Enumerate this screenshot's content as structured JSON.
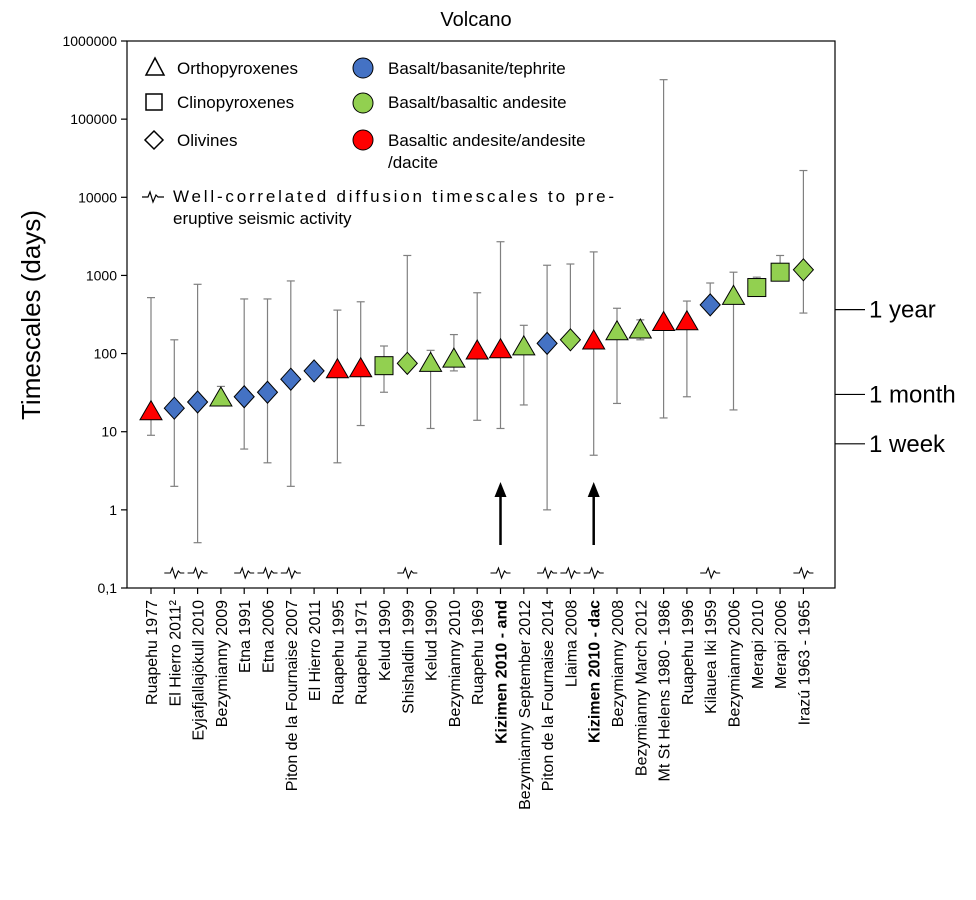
{
  "chart_data": {
    "type": "scatter",
    "title": "Volcano",
    "xlabel": "",
    "ylabel": "Timescales (days)",
    "y_scale": "log",
    "ylim": [
      0.1,
      1000000
    ],
    "y_ticks": [
      "0,1",
      "1",
      "10",
      "100",
      "1000",
      "10000",
      "100000",
      "1000000"
    ],
    "grid": false,
    "categories": [
      "Ruapehu 1977",
      "El Hierro 2011²",
      "Eyjafjallajökull 2010",
      "Bezymianny 2009",
      "Etna 1991",
      "Etna 2006",
      "Piton de la Fournaise 2007",
      "El Hierro 2011",
      "Ruapehu 1995",
      "Ruapehu 1971",
      "Kelud 1990",
      "Shishaldin 1999",
      "Kelud 1990",
      "Bezymianny 2010",
      "Ruapehu 1969",
      "Kizimen 2010 - and",
      "Bezymianny September 2012",
      "Piton de la Fournaise 2014",
      "Llaima 2008",
      "Kizimen 2010 - dac",
      "Bezymianny 2008",
      "Bezymianny March 2012",
      "Mt St Helens 1980 - 1986",
      "Ruapehu 1996",
      "Kilauea  Iki 1959",
      "Bezymianny 2006",
      "Merapi 2010",
      "Merapi 2006",
      "Irazú 1963 - 1965"
    ],
    "bold_categories": [
      15,
      19
    ],
    "points": [
      {
        "value": 18,
        "low": 9,
        "high": 520,
        "mineral": "orthopyroxene",
        "composition": "basaltic-andesite-dacite",
        "seismic": false
      },
      {
        "value": 20,
        "low": 2,
        "high": 150,
        "mineral": "olivine",
        "composition": "basalt-basanite-tephrite",
        "seismic": true
      },
      {
        "value": 24,
        "low": 0.38,
        "high": 770,
        "mineral": "olivine",
        "composition": "basalt-basanite-tephrite",
        "seismic": true
      },
      {
        "value": 27,
        "low": 22,
        "high": 38,
        "mineral": "orthopyroxene",
        "composition": "basalt-basaltic-andesite",
        "seismic": false
      },
      {
        "value": 28,
        "low": 6,
        "high": 500,
        "mineral": "olivine",
        "composition": "basalt-basanite-tephrite",
        "seismic": true
      },
      {
        "value": 32,
        "low": 4,
        "high": 500,
        "mineral": "olivine",
        "composition": "basalt-basanite-tephrite",
        "seismic": true
      },
      {
        "value": 47,
        "low": 2,
        "high": 850,
        "mineral": "olivine",
        "composition": "basalt-basanite-tephrite",
        "seismic": true
      },
      {
        "value": 60,
        "low": 52,
        "high": 68,
        "mineral": "olivine",
        "composition": "basalt-basanite-tephrite",
        "seismic": false
      },
      {
        "value": 62,
        "low": 4,
        "high": 360,
        "mineral": "orthopyroxene",
        "composition": "basaltic-andesite-dacite",
        "seismic": false
      },
      {
        "value": 64,
        "low": 12,
        "high": 460,
        "mineral": "orthopyroxene",
        "composition": "basaltic-andesite-dacite",
        "seismic": false
      },
      {
        "value": 70,
        "low": 32,
        "high": 125,
        "mineral": "clinopyroxene",
        "composition": "basalt-basaltic-andesite",
        "seismic": false
      },
      {
        "value": 75,
        "low": 70,
        "high": 1800,
        "mineral": "olivine",
        "composition": "basalt-basaltic-andesite",
        "seismic": true
      },
      {
        "value": 75,
        "low": 11,
        "high": 110,
        "mineral": "orthopyroxene",
        "composition": "basalt-basaltic-andesite",
        "seismic": false
      },
      {
        "value": 85,
        "low": 60,
        "high": 175,
        "mineral": "orthopyroxene",
        "composition": "basalt-basaltic-andesite",
        "seismic": false
      },
      {
        "value": 108,
        "low": 14,
        "high": 600,
        "mineral": "orthopyroxene",
        "composition": "basaltic-andesite-dacite",
        "seismic": false
      },
      {
        "value": 112,
        "low": 11,
        "high": 2700,
        "mineral": "orthopyroxene",
        "composition": "basaltic-andesite-dacite",
        "seismic": true
      },
      {
        "value": 122,
        "low": 22,
        "high": 230,
        "mineral": "orthopyroxene",
        "composition": "basalt-basaltic-andesite",
        "seismic": false
      },
      {
        "value": 135,
        "low": 1,
        "high": 1350,
        "mineral": "olivine",
        "composition": "basalt-basanite-tephrite",
        "seismic": true
      },
      {
        "value": 150,
        "low": 150,
        "high": 1400,
        "mineral": "olivine",
        "composition": "basalt-basaltic-andesite",
        "seismic": true
      },
      {
        "value": 145,
        "low": 5,
        "high": 2000,
        "mineral": "orthopyroxene",
        "composition": "basaltic-andesite-dacite",
        "seismic": true
      },
      {
        "value": 190,
        "low": 23,
        "high": 380,
        "mineral": "orthopyroxene",
        "composition": "basalt-basaltic-andesite",
        "seismic": false
      },
      {
        "value": 200,
        "low": 150,
        "high": 270,
        "mineral": "orthopyroxene",
        "composition": "basalt-basaltic-andesite",
        "seismic": false
      },
      {
        "value": 250,
        "low": 15,
        "high": 320000,
        "mineral": "orthopyroxene",
        "composition": "basaltic-andesite-dacite",
        "seismic": false
      },
      {
        "value": 255,
        "low": 28,
        "high": 470,
        "mineral": "orthopyroxene",
        "composition": "basaltic-andesite-dacite",
        "seismic": false
      },
      {
        "value": 420,
        "low": 420,
        "high": 800,
        "mineral": "olivine",
        "composition": "basalt-basanite-tephrite",
        "seismic": true
      },
      {
        "value": 540,
        "low": 19,
        "high": 1100,
        "mineral": "orthopyroxene",
        "composition": "basalt-basaltic-andesite",
        "seismic": false
      },
      {
        "value": 700,
        "low": 650,
        "high": 950,
        "mineral": "clinopyroxene",
        "composition": "basalt-basaltic-andesite",
        "seismic": false
      },
      {
        "value": 1100,
        "low": 1000,
        "high": 1800,
        "mineral": "clinopyroxene",
        "composition": "basalt-basaltic-andesite",
        "seismic": false
      },
      {
        "value": 1180,
        "low": 330,
        "high": 22000,
        "mineral": "olivine",
        "composition": "basalt-basaltic-andesite",
        "seismic": true
      }
    ],
    "arrows_at_categories": [
      15,
      19
    ],
    "reference_lines": [
      {
        "label": "1 year",
        "value": 365
      },
      {
        "label": "1 month",
        "value": 30
      },
      {
        "label": "1 week",
        "value": 7
      }
    ],
    "legend": {
      "placement": "top-left",
      "shapes": [
        {
          "key": "orthopyroxene",
          "label": "Orthopyroxenes"
        },
        {
          "key": "clinopyroxene",
          "label": "Clinopyroxenes"
        },
        {
          "key": "olivine",
          "label": "Olivines"
        }
      ],
      "colors": [
        {
          "key": "basalt-basanite-tephrite",
          "label": "Basalt/basanite/tephrite",
          "color": "#4472C4"
        },
        {
          "key": "basalt-basaltic-andesite",
          "label": "Basalt/basaltic andesite",
          "color": "#92D050"
        },
        {
          "key": "basaltic-andesite-dacite",
          "label_lines": [
            "Basaltic andesite/andesite",
            "/dacite"
          ],
          "color": "#FF0000"
        }
      ],
      "seismic_lines": [
        "Well-correlated diffusion timescales to pre-",
        "eruptive seismic activity"
      ]
    }
  }
}
